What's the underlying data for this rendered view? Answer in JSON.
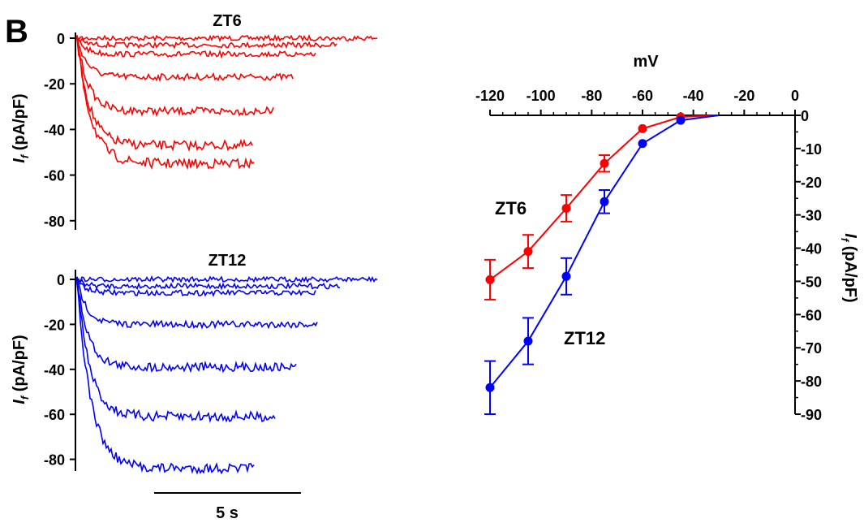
{
  "panel_label": "B",
  "chart_data": [
    {
      "type": "line",
      "title": "ZT6",
      "ylabel_main": "I",
      "ylabel_sub": "f",
      "ylabel_unit": " (pA/pF)",
      "yticks": [
        "0",
        "-20",
        "-40",
        "-60",
        "-80"
      ],
      "ylim": [
        -85,
        2
      ],
      "color": "#ff0000",
      "series": [
        {
          "values": [
            0
          ]
        },
        {
          "values": [
            -3
          ]
        },
        {
          "values": [
            -7
          ]
        },
        {
          "values": [
            -17
          ]
        },
        {
          "values": [
            -32
          ]
        },
        {
          "values": [
            -47
          ]
        },
        {
          "values": [
            -55
          ]
        }
      ]
    },
    {
      "type": "line",
      "title": "ZT12",
      "ylabel_main": "I",
      "ylabel_sub": "f",
      "ylabel_unit": " (pA/pF)",
      "yticks": [
        "0",
        "-20",
        "-40",
        "-60",
        "-80"
      ],
      "ylim": [
        -87,
        2
      ],
      "scalebar_label": "5 s",
      "color": "#0000ff",
      "series": [
        {
          "values": [
            0
          ]
        },
        {
          "values": [
            -3
          ]
        },
        {
          "values": [
            -6
          ]
        },
        {
          "values": [
            -20
          ]
        },
        {
          "values": [
            -39
          ]
        },
        {
          "values": [
            -61
          ]
        },
        {
          "values": [
            -84
          ]
        }
      ]
    },
    {
      "type": "line",
      "xlabel": "mV",
      "ylabel_main": "I",
      "ylabel_sub": "f",
      "ylabel_unit": " (pA/pF)",
      "xlim": [
        -120,
        0
      ],
      "ylim": [
        -90,
        0
      ],
      "xticks": [
        "-120",
        "-100",
        "-80",
        "-60",
        "-40",
        "-20",
        "0"
      ],
      "yticks": [
        "0",
        "-10",
        "-20",
        "-30",
        "-40",
        "-50",
        "-60",
        "-70",
        "-80",
        "-90"
      ],
      "x": [
        -120,
        -105,
        -90,
        -75,
        -60,
        -45
      ],
      "series": [
        {
          "name": "ZT6",
          "color": "#ff0000",
          "values": [
            -49.5,
            -41,
            -28,
            -14.5,
            -4,
            -0.5
          ],
          "errors": [
            6,
            5,
            4,
            2.5,
            0,
            0
          ]
        },
        {
          "name": "ZT12",
          "color": "#0000ff",
          "values": [
            -82,
            -68,
            -48.5,
            -26,
            -8.5,
            -1.5
          ],
          "errors": [
            8,
            7,
            5.5,
            3.5,
            0,
            0
          ]
        }
      ]
    }
  ]
}
